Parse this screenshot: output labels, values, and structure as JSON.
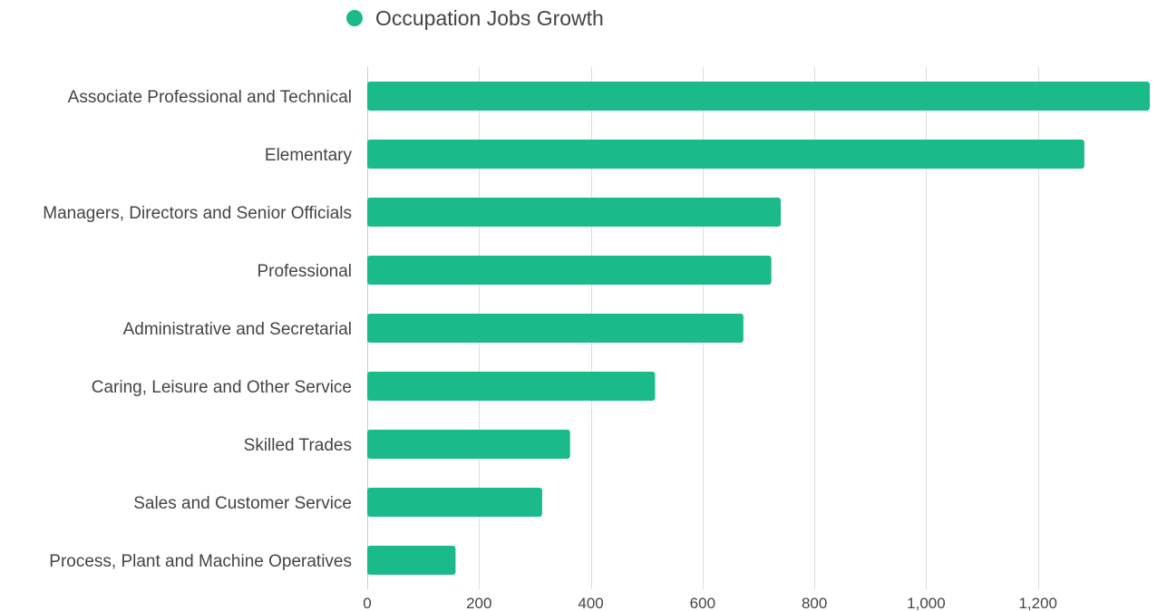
{
  "chart_data": {
    "type": "bar",
    "orientation": "horizontal",
    "categories": [
      "Associate Professional and Technical",
      "Elementary",
      "Managers, Directors and Senior Officials",
      "Professional",
      "Administrative and Secretarial",
      "Caring, Leisure and Other Service",
      "Skilled Trades",
      "Sales and Customer Service",
      "Process, Plant and Machine Operatives"
    ],
    "series": [
      {
        "name": "Occupation Jobs Growth",
        "color": "#1aba8a",
        "values": [
          1400,
          1283,
          740,
          723,
          673,
          515,
          363,
          313,
          158
        ]
      }
    ],
    "xlim": [
      0,
      1400
    ],
    "x_ticks": [
      0,
      200,
      400,
      600,
      800,
      1000,
      1200
    ],
    "x_tick_labels": [
      "0",
      "200",
      "400",
      "600",
      "800",
      "1,000",
      "1,200"
    ],
    "grid": true,
    "grid_color": "#dddddd",
    "legend_position": "top",
    "label_color": "#444444"
  }
}
